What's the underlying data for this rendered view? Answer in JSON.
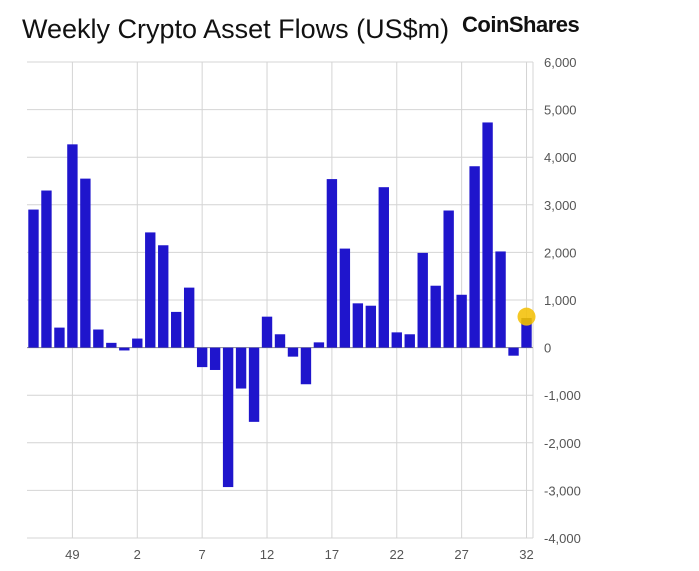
{
  "header": {
    "title": "Weekly Crypto Asset Flows (US$m)",
    "brand": "CoinShares"
  },
  "colors": {
    "bar": "#1f15cc",
    "grid": "#d4d4d4",
    "zero_line": "#888888",
    "marker": "#f4c20d",
    "marker_bar_top": "#111111"
  },
  "chart_data": {
    "type": "bar",
    "title": "Weekly Crypto Asset Flows (US$m)",
    "xlabel": "",
    "ylabel": "",
    "ylim": [
      -4000,
      6000
    ],
    "yticks": [
      -4000,
      -3000,
      -2000,
      -1000,
      0,
      1000,
      2000,
      3000,
      4000,
      5000,
      6000
    ],
    "ytick_labels": [
      "-4,000",
      "-3,000",
      "-2,000",
      "-1,000",
      "0",
      "1,000",
      "2,000",
      "3,000",
      "4,000",
      "5,000",
      "6,000"
    ],
    "x_tick_labels": [
      {
        "index": 3,
        "label": "49"
      },
      {
        "index": 8,
        "label": "2"
      },
      {
        "index": 13,
        "label": "7"
      },
      {
        "index": 18,
        "label": "12"
      },
      {
        "index": 23,
        "label": "17"
      },
      {
        "index": 28,
        "label": "22"
      },
      {
        "index": 33,
        "label": "27"
      },
      {
        "index": 38,
        "label": "32"
      }
    ],
    "grid": true,
    "values": [
      2900,
      3300,
      420,
      4270,
      3550,
      380,
      100,
      -60,
      190,
      2420,
      2150,
      750,
      1260,
      -410,
      -470,
      -2930,
      -860,
      -1560,
      650,
      280,
      -190,
      -770,
      110,
      3540,
      2080,
      930,
      880,
      3370,
      320,
      280,
      1990,
      1300,
      2880,
      1110,
      3810,
      4730,
      2020,
      -170,
      580
    ],
    "highlight": {
      "index": 38,
      "marker_value": 650
    }
  }
}
